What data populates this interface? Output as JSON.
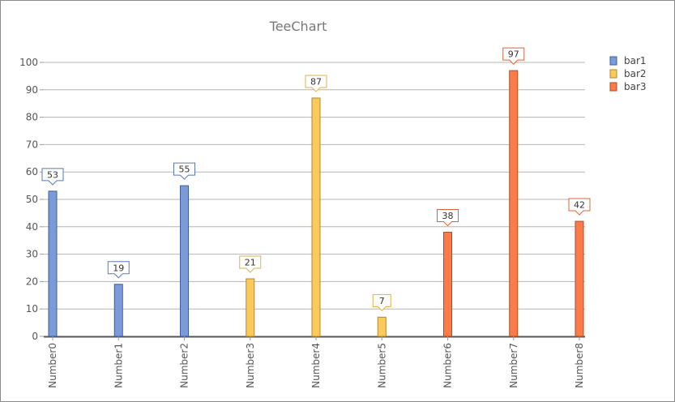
{
  "chart_data": {
    "type": "bar",
    "title": "TeeChart",
    "xlabel": "",
    "ylabel": "",
    "ylim": [
      0,
      100
    ],
    "yticks": [
      0,
      10,
      20,
      30,
      40,
      50,
      60,
      70,
      80,
      90,
      100
    ],
    "grid": true,
    "legend_position": "top-right",
    "categories": [
      "Number0",
      "Number1",
      "Number2",
      "Number3",
      "Number4",
      "Number5",
      "Number6",
      "Number7",
      "Number8"
    ],
    "series": [
      {
        "name": "bar1",
        "color": "#7a9bd8",
        "border": "#3e5c9a",
        "label_border": "#5a78b0",
        "points": [
          {
            "category": "Number0",
            "value": 53
          },
          {
            "category": "Number1",
            "value": 19
          },
          {
            "category": "Number2",
            "value": 55
          }
        ]
      },
      {
        "name": "bar2",
        "color": "#fdc95a",
        "border": "#b08a2a",
        "label_border": "#e0b04a",
        "points": [
          {
            "category": "Number3",
            "value": 21
          },
          {
            "category": "Number4",
            "value": 87
          },
          {
            "category": "Number5",
            "value": 7
          }
        ]
      },
      {
        "name": "bar3",
        "color": "#fb7c48",
        "border": "#a84e26",
        "label_border": "#d8643a",
        "points": [
          {
            "category": "Number6",
            "value": 38
          },
          {
            "category": "Number7",
            "value": 97
          },
          {
            "category": "Number8",
            "value": 42
          }
        ]
      }
    ]
  }
}
